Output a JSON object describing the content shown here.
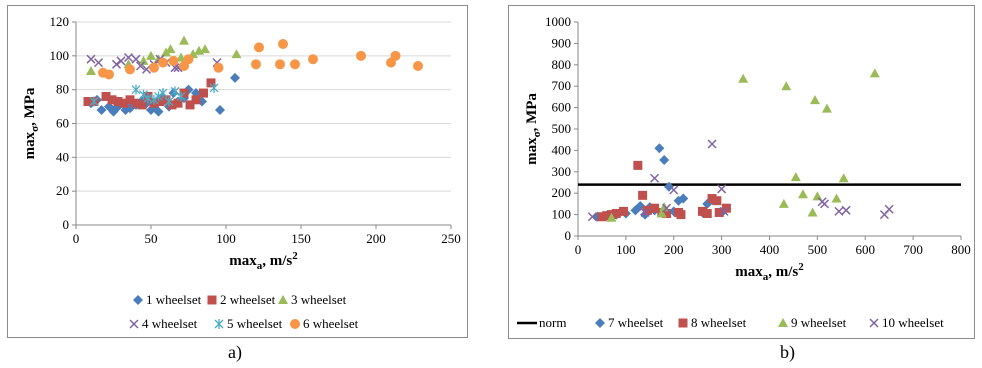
{
  "subcaptions": {
    "a": "a)",
    "b": "b)"
  },
  "chart_data": [
    {
      "type": "scatter",
      "title": "",
      "xlabel_main": "max",
      "xlabel_sub": "a",
      "xlabel_unit": ", m/s",
      "xlabel_sup": "2",
      "ylabel_main": "max",
      "ylabel_sub": "σ",
      "ylabel_unit": ", MPa",
      "xlim": [
        0,
        250
      ],
      "ylim": [
        0,
        120
      ],
      "xticks": [
        0,
        50,
        100,
        150,
        200,
        250
      ],
      "yticks": [
        0,
        20,
        40,
        60,
        80,
        100,
        120
      ],
      "grid": "horizontal",
      "legend_placement": "bottom",
      "series": [
        {
          "name": "1 wheelset",
          "marker": "diamond",
          "color": "#4a7ebb",
          "points": [
            [
              10,
              72
            ],
            [
              14,
              74
            ],
            [
              17,
              68
            ],
            [
              22,
              70
            ],
            [
              25,
              67
            ],
            [
              28,
              70
            ],
            [
              30,
              72
            ],
            [
              33,
              68
            ],
            [
              36,
              69
            ],
            [
              40,
              71
            ],
            [
              44,
              73
            ],
            [
              47,
              72
            ],
            [
              50,
              68
            ],
            [
              53,
              71
            ],
            [
              55,
              67
            ],
            [
              58,
              75
            ],
            [
              62,
              70
            ],
            [
              65,
              78
            ],
            [
              68,
              73
            ],
            [
              72,
              75
            ],
            [
              75,
              80
            ],
            [
              80,
              78
            ],
            [
              84,
              73
            ],
            [
              96,
              68
            ],
            [
              106,
              87
            ]
          ]
        },
        {
          "name": "2 wheelset",
          "marker": "square",
          "color": "#c0504d",
          "points": [
            [
              8,
              73
            ],
            [
              12,
              73
            ],
            [
              20,
              76
            ],
            [
              24,
              74
            ],
            [
              28,
              73
            ],
            [
              32,
              72
            ],
            [
              36,
              74
            ],
            [
              40,
              72
            ],
            [
              44,
              71
            ],
            [
              48,
              76
            ],
            [
              52,
              72
            ],
            [
              56,
              73
            ],
            [
              60,
              74
            ],
            [
              64,
              71
            ],
            [
              68,
              72
            ],
            [
              72,
              78
            ],
            [
              76,
              71
            ],
            [
              80,
              74
            ],
            [
              85,
              78
            ],
            [
              90,
              84
            ]
          ]
        },
        {
          "name": "3 wheelset",
          "marker": "triangle",
          "color": "#9bbb59",
          "points": [
            [
              10,
              91
            ],
            [
              35,
              95
            ],
            [
              45,
              97
            ],
            [
              50,
              100
            ],
            [
              55,
              98
            ],
            [
              60,
              102
            ],
            [
              63,
              104
            ],
            [
              70,
              99
            ],
            [
              72,
              109
            ],
            [
              78,
              101
            ],
            [
              82,
              103
            ],
            [
              86,
              104
            ],
            [
              107,
              101
            ]
          ]
        },
        {
          "name": "4 wheelset",
          "marker": "x",
          "color": "#8064a2",
          "points": [
            [
              10,
              98
            ],
            [
              15,
              96
            ],
            [
              27,
              95
            ],
            [
              30,
              97
            ],
            [
              35,
              99
            ],
            [
              40,
              98
            ],
            [
              43,
              94
            ],
            [
              47,
              92
            ],
            [
              52,
              95
            ],
            [
              56,
              98
            ],
            [
              60,
              96
            ],
            [
              66,
              93
            ],
            [
              68,
              93
            ],
            [
              94,
              96
            ]
          ]
        },
        {
          "name": "5 wheelset",
          "marker": "asterisk",
          "color": "#4bacc6",
          "points": [
            [
              12,
              73
            ],
            [
              40,
              80
            ],
            [
              45,
              77
            ],
            [
              48,
              75
            ],
            [
              52,
              74
            ],
            [
              55,
              76
            ],
            [
              58,
              78
            ],
            [
              62,
              73
            ],
            [
              66,
              79
            ],
            [
              70,
              76
            ],
            [
              92,
              81
            ]
          ]
        },
        {
          "name": "6 wheelset",
          "marker": "circle",
          "color": "#f79646",
          "points": [
            [
              18,
              90
            ],
            [
              22,
              89
            ],
            [
              36,
              92
            ],
            [
              52,
              93
            ],
            [
              58,
              96
            ],
            [
              65,
              97
            ],
            [
              72,
              94
            ],
            [
              75,
              98
            ],
            [
              95,
              93
            ],
            [
              120,
              95
            ],
            [
              122,
              105
            ],
            [
              136,
              95
            ],
            [
              138,
              107
            ],
            [
              146,
              95
            ],
            [
              158,
              98
            ],
            [
              190,
              100
            ],
            [
              210,
              96
            ],
            [
              213,
              100
            ],
            [
              228,
              94
            ]
          ]
        }
      ]
    },
    {
      "type": "scatter",
      "title": "",
      "xlabel_main": "max",
      "xlabel_sub": "a",
      "xlabel_unit": ", m/s",
      "xlabel_sup": "2",
      "ylabel_main": "max",
      "ylabel_sub": "σ",
      "ylabel_unit": ", MPa",
      "xlim": [
        0,
        800
      ],
      "ylim": [
        0,
        1000
      ],
      "xticks": [
        0,
        100,
        200,
        300,
        400,
        500,
        600,
        700,
        800
      ],
      "yticks": [
        0,
        100,
        200,
        300,
        400,
        500,
        600,
        700,
        800,
        900,
        1000
      ],
      "grid": "none",
      "legend_placement": "bottom",
      "norm": {
        "name": "norm",
        "value": 240,
        "color": "#000000"
      },
      "series": [
        {
          "name": "7 wheelset",
          "marker": "diamond",
          "color": "#4a7ebb",
          "points": [
            [
              40,
              90
            ],
            [
              60,
              95
            ],
            [
              80,
              100
            ],
            [
              100,
              105
            ],
            [
              120,
              120
            ],
            [
              130,
              140
            ],
            [
              140,
              100
            ],
            [
              150,
              135
            ],
            [
              160,
              120
            ],
            [
              170,
              410
            ],
            [
              180,
              355
            ],
            [
              190,
              230
            ],
            [
              200,
              115
            ],
            [
              210,
              165
            ],
            [
              220,
              175
            ],
            [
              260,
              110
            ],
            [
              270,
              150
            ],
            [
              280,
              170
            ],
            [
              300,
              110
            ]
          ]
        },
        {
          "name": "8 wheelset",
          "marker": "square",
          "color": "#c0504d",
          "points": [
            [
              50,
              90
            ],
            [
              60,
              95
            ],
            [
              70,
              100
            ],
            [
              80,
              105
            ],
            [
              95,
              115
            ],
            [
              125,
              330
            ],
            [
              135,
              190
            ],
            [
              145,
              120
            ],
            [
              160,
              130
            ],
            [
              175,
              110
            ],
            [
              185,
              105
            ],
            [
              210,
              110
            ],
            [
              215,
              100
            ],
            [
              260,
              115
            ],
            [
              270,
              105
            ],
            [
              280,
              175
            ],
            [
              290,
              165
            ],
            [
              295,
              110
            ],
            [
              310,
              130
            ]
          ]
        },
        {
          "name": "9 wheelset",
          "marker": "triangle",
          "color": "#9bbb59",
          "points": [
            [
              70,
              85
            ],
            [
              175,
              105
            ],
            [
              180,
              135
            ],
            [
              345,
              735
            ],
            [
              430,
              150
            ],
            [
              435,
              700
            ],
            [
              455,
              275
            ],
            [
              470,
              195
            ],
            [
              490,
              110
            ],
            [
              495,
              635
            ],
            [
              500,
              185
            ],
            [
              520,
              595
            ],
            [
              540,
              175
            ],
            [
              555,
              270
            ],
            [
              620,
              760
            ]
          ]
        },
        {
          "name": "10 wheelset",
          "marker": "x",
          "color": "#8064a2",
          "points": [
            [
              30,
              90
            ],
            [
              140,
              110
            ],
            [
              160,
              270
            ],
            [
              185,
              130
            ],
            [
              200,
              215
            ],
            [
              280,
              430
            ],
            [
              300,
              220
            ],
            [
              305,
              115
            ],
            [
              510,
              160
            ],
            [
              515,
              150
            ],
            [
              545,
              115
            ],
            [
              560,
              120
            ],
            [
              640,
              100
            ],
            [
              650,
              125
            ]
          ]
        }
      ]
    }
  ]
}
